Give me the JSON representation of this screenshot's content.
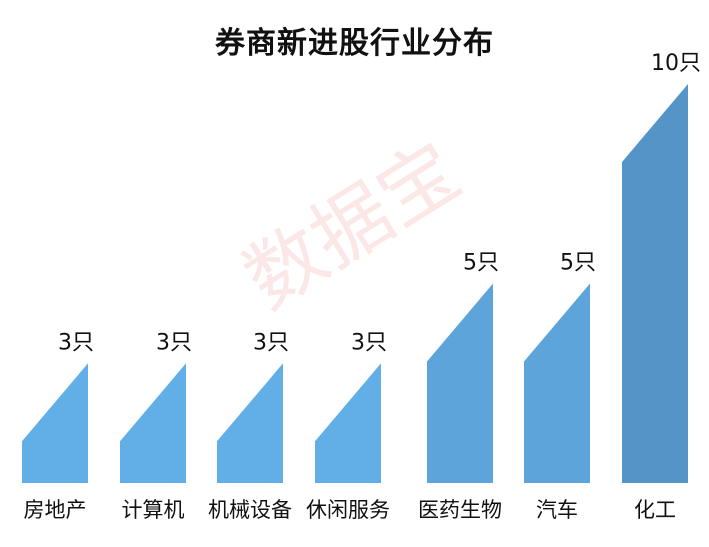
{
  "watermark": "数据宝",
  "chart_data": {
    "type": "bar",
    "title": "券商新进股行业分布",
    "xlabel": "",
    "ylabel": "",
    "ylim": [
      0,
      10
    ],
    "grid": false,
    "categories": [
      "房地产",
      "计算机",
      "机械设备",
      "休闲服务",
      "医药生物",
      "汽车",
      "化工"
    ],
    "values": [
      3,
      3,
      3,
      3,
      5,
      5,
      10
    ],
    "data_labels": [
      "3只",
      "3只",
      "3只",
      "3只",
      "5只",
      "5只",
      "10只"
    ],
    "colors": {
      "light_bar": "#62AEE6",
      "mid_bar": "#5DA4DA",
      "dark_bar": "#5494C6",
      "label_text": "#111111"
    }
  }
}
